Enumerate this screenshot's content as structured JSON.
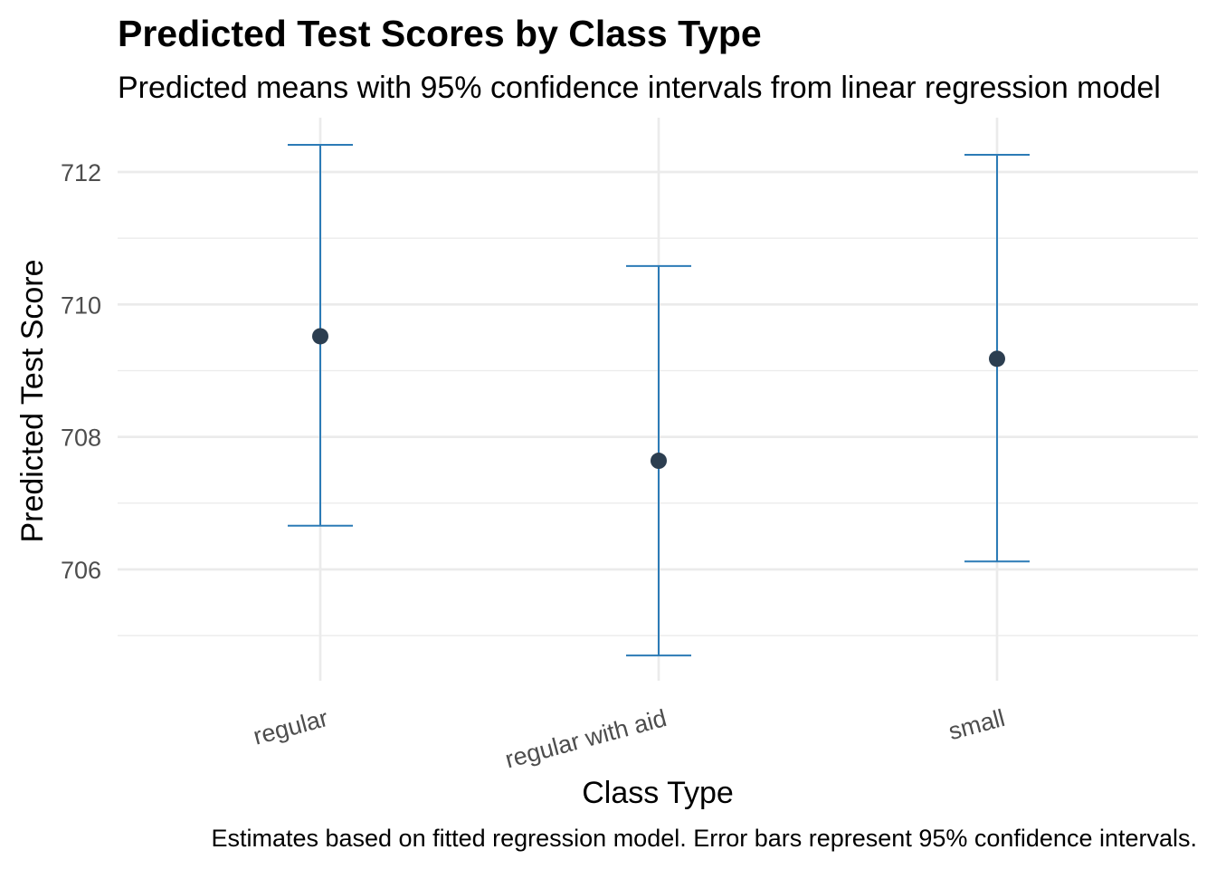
{
  "chart_data": {
    "type": "scatter",
    "title": "Predicted Test Scores by Class Type",
    "subtitle": "Predicted means with 95% confidence intervals from linear regression model",
    "xlabel": "Class Type",
    "ylabel": "Predicted Test Score",
    "caption": "Estimates based on fitted regression model. Error bars represent 95% confidence intervals.",
    "categories": [
      "regular",
      "regular with aid",
      "small"
    ],
    "values": [
      709.52,
      707.64,
      709.18
    ],
    "ci_lower": [
      706.66,
      704.7,
      706.12
    ],
    "ci_upper": [
      712.41,
      710.58,
      712.26
    ],
    "ylim": [
      704.6,
      712.8
    ],
    "yticks": [
      706,
      708,
      710,
      712
    ],
    "grid": true,
    "legend": "none",
    "colors": {
      "point": "#2c3e50",
      "errorbar": "#2c7bb6"
    }
  }
}
